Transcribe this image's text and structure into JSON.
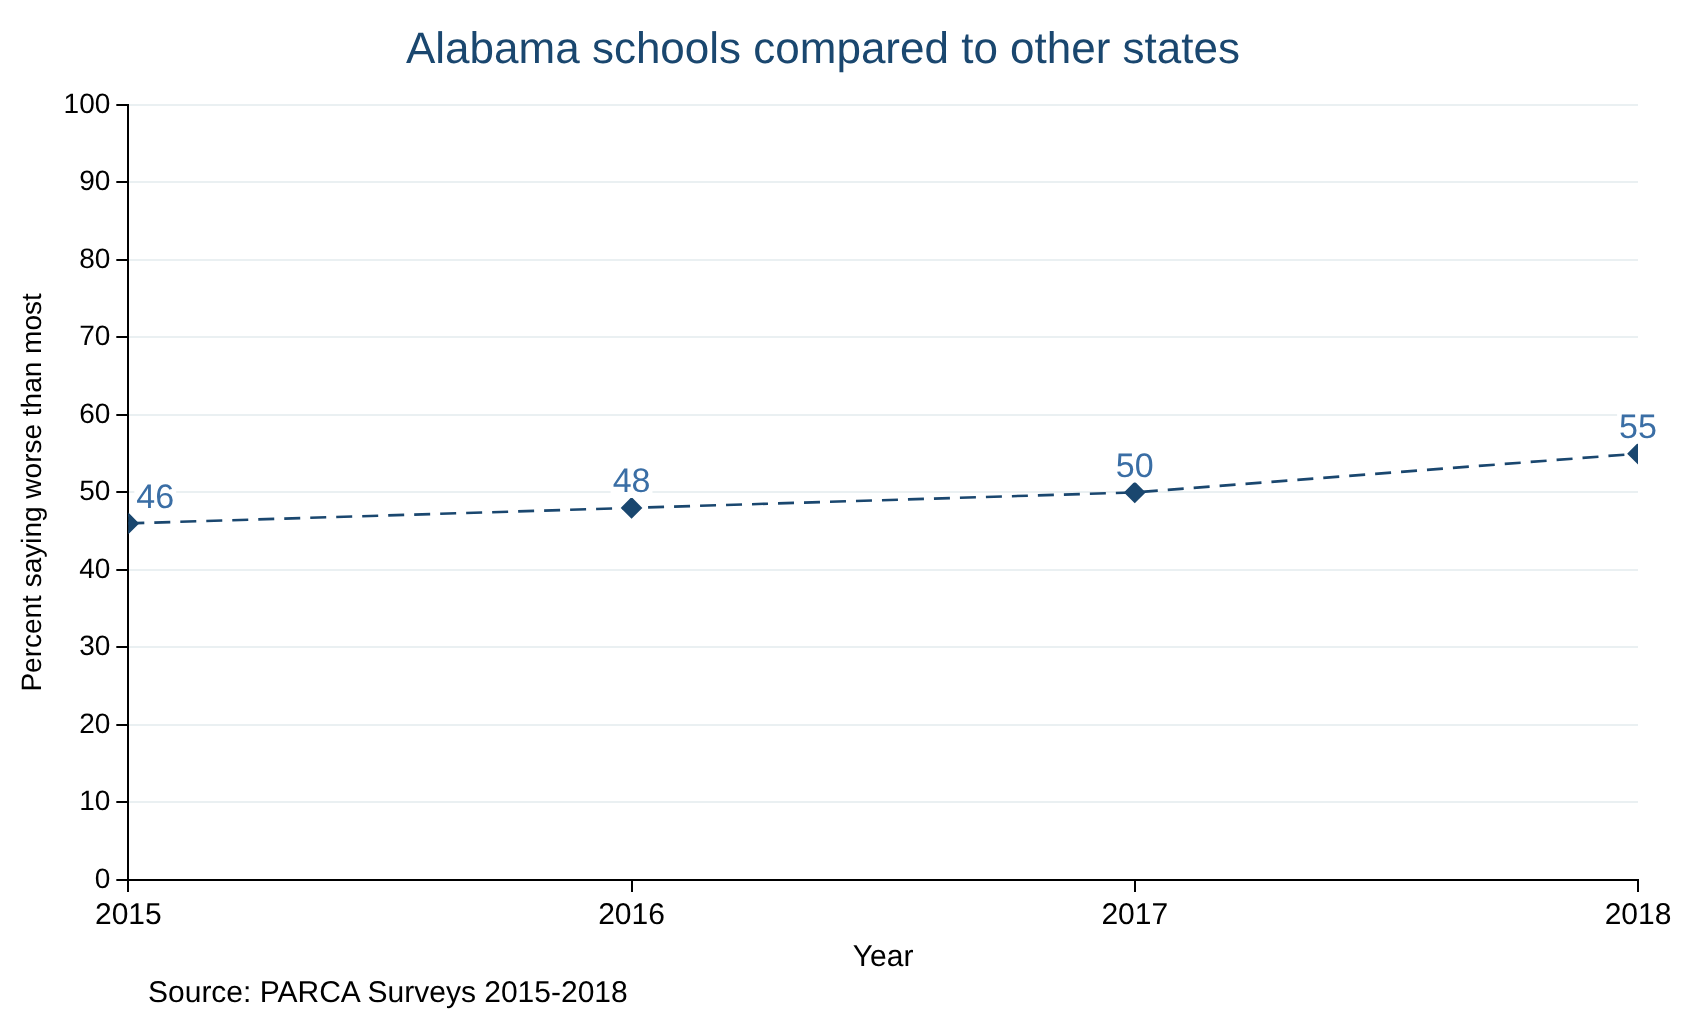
{
  "chart_data": {
    "type": "line",
    "title": "Alabama schools compared to other states",
    "xlabel": "Year",
    "ylabel": "Percent saying worse than most",
    "x": [
      2015,
      2016,
      2017,
      2018
    ],
    "series": [
      {
        "color": "#1a476f",
        "values": [
          46,
          48,
          50,
          55
        ]
      }
    ],
    "xlim": [
      2015,
      2018
    ],
    "xticks": [
      2015,
      2016,
      2017,
      2018
    ],
    "ylim": [
      0,
      100
    ],
    "yticks": [
      0,
      10,
      20,
      30,
      40,
      50,
      60,
      70,
      80,
      90,
      100
    ],
    "grid": "y",
    "marker": "diamond",
    "line_style": "dashed",
    "data_labels": true,
    "annotations": [
      "Source: PARCA Surveys 2015-2018"
    ]
  }
}
